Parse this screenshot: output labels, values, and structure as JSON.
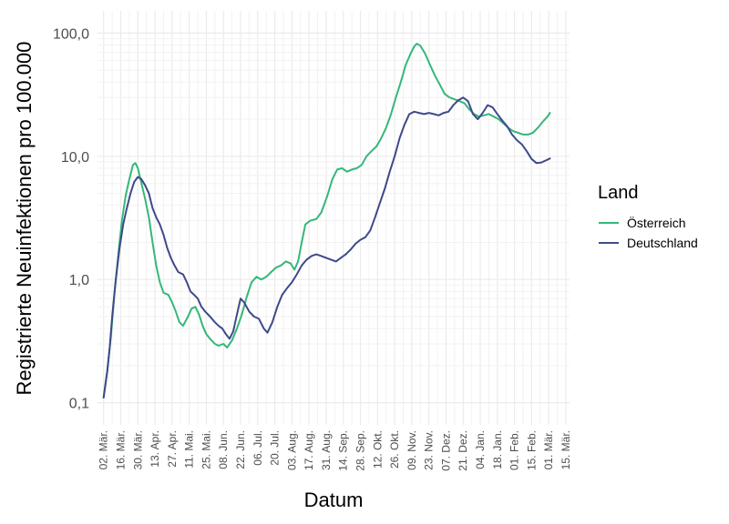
{
  "chart_data": {
    "type": "line",
    "xlabel": "Datum",
    "ylabel": "Registrierte Neuinfektionen pro 100.000",
    "yscale": "log10",
    "ylim": [
      0.1,
      100
    ],
    "xlim": [
      "2020-02-26",
      "2021-03-18"
    ],
    "grid": true,
    "legend": {
      "title": "Land",
      "placement": "right"
    },
    "y_ticks": [
      {
        "value": 0.1,
        "label": "0,1"
      },
      {
        "value": 1,
        "label": "1,0"
      },
      {
        "value": 10,
        "label": "10,0"
      },
      {
        "value": 100,
        "label": "100,0"
      }
    ],
    "x_ticks": [
      {
        "date": "2020-03-02",
        "label": "02. Mär."
      },
      {
        "date": "2020-03-16",
        "label": "16. Mär."
      },
      {
        "date": "2020-03-30",
        "label": "30. Mär."
      },
      {
        "date": "2020-04-13",
        "label": "13. Apr."
      },
      {
        "date": "2020-04-27",
        "label": "27. Apr."
      },
      {
        "date": "2020-05-11",
        "label": "11. Mai."
      },
      {
        "date": "2020-05-25",
        "label": "25. Mai."
      },
      {
        "date": "2020-06-08",
        "label": "08. Jun."
      },
      {
        "date": "2020-06-22",
        "label": "22. Jun."
      },
      {
        "date": "2020-07-06",
        "label": "06. Jul."
      },
      {
        "date": "2020-07-20",
        "label": "20. Jul."
      },
      {
        "date": "2020-08-03",
        "label": "03. Aug."
      },
      {
        "date": "2020-08-17",
        "label": "17. Aug."
      },
      {
        "date": "2020-08-31",
        "label": "31. Aug."
      },
      {
        "date": "2020-09-14",
        "label": "14. Sep."
      },
      {
        "date": "2020-09-28",
        "label": "28. Sep."
      },
      {
        "date": "2020-10-12",
        "label": "12. Okt."
      },
      {
        "date": "2020-10-26",
        "label": "26. Okt."
      },
      {
        "date": "2020-11-09",
        "label": "09. Nov."
      },
      {
        "date": "2020-11-23",
        "label": "23. Nov."
      },
      {
        "date": "2020-12-07",
        "label": "07. Dez."
      },
      {
        "date": "2020-12-21",
        "label": "21. Dez."
      },
      {
        "date": "2021-01-04",
        "label": "04. Jan."
      },
      {
        "date": "2021-01-18",
        "label": "18. Jan."
      },
      {
        "date": "2021-02-01",
        "label": "01. Feb."
      },
      {
        "date": "2021-02-15",
        "label": "15. Feb."
      },
      {
        "date": "2021-03-01",
        "label": "01. Mär."
      },
      {
        "date": "2021-03-15",
        "label": "15. Mär."
      }
    ],
    "series": [
      {
        "name": "Österreich",
        "color": "#35b779",
        "points": [
          [
            "2020-03-02",
            0.11
          ],
          [
            "2020-03-05",
            0.18
          ],
          [
            "2020-03-08",
            0.35
          ],
          [
            "2020-03-11",
            0.8
          ],
          [
            "2020-03-14",
            1.6
          ],
          [
            "2020-03-17",
            3.0
          ],
          [
            "2020-03-20",
            4.8
          ],
          [
            "2020-03-23",
            6.5
          ],
          [
            "2020-03-26",
            8.5
          ],
          [
            "2020-03-28",
            8.8
          ],
          [
            "2020-03-30",
            8.0
          ],
          [
            "2020-04-02",
            6.0
          ],
          [
            "2020-04-05",
            4.5
          ],
          [
            "2020-04-08",
            3.2
          ],
          [
            "2020-04-11",
            2.0
          ],
          [
            "2020-04-14",
            1.3
          ],
          [
            "2020-04-17",
            0.95
          ],
          [
            "2020-04-20",
            0.78
          ],
          [
            "2020-04-24",
            0.75
          ],
          [
            "2020-04-27",
            0.65
          ],
          [
            "2020-04-30",
            0.55
          ],
          [
            "2020-05-03",
            0.45
          ],
          [
            "2020-05-06",
            0.42
          ],
          [
            "2020-05-10",
            0.5
          ],
          [
            "2020-05-13",
            0.58
          ],
          [
            "2020-05-16",
            0.6
          ],
          [
            "2020-05-19",
            0.52
          ],
          [
            "2020-05-22",
            0.42
          ],
          [
            "2020-05-25",
            0.36
          ],
          [
            "2020-05-28",
            0.33
          ],
          [
            "2020-06-01",
            0.3
          ],
          [
            "2020-06-04",
            0.29
          ],
          [
            "2020-06-08",
            0.3
          ],
          [
            "2020-06-11",
            0.28
          ],
          [
            "2020-06-15",
            0.32
          ],
          [
            "2020-06-19",
            0.4
          ],
          [
            "2020-06-23",
            0.52
          ],
          [
            "2020-06-27",
            0.72
          ],
          [
            "2020-07-01",
            0.95
          ],
          [
            "2020-07-05",
            1.05
          ],
          [
            "2020-07-09",
            1.0
          ],
          [
            "2020-07-13",
            1.05
          ],
          [
            "2020-07-17",
            1.15
          ],
          [
            "2020-07-21",
            1.25
          ],
          [
            "2020-07-25",
            1.3
          ],
          [
            "2020-07-29",
            1.4
          ],
          [
            "2020-08-02",
            1.35
          ],
          [
            "2020-08-05",
            1.2
          ],
          [
            "2020-08-08",
            1.4
          ],
          [
            "2020-08-11",
            2.0
          ],
          [
            "2020-08-14",
            2.8
          ],
          [
            "2020-08-18",
            3.0
          ],
          [
            "2020-08-23",
            3.1
          ],
          [
            "2020-08-27",
            3.5
          ],
          [
            "2020-09-01",
            4.8
          ],
          [
            "2020-09-05",
            6.5
          ],
          [
            "2020-09-09",
            7.8
          ],
          [
            "2020-09-13",
            8.0
          ],
          [
            "2020-09-17",
            7.5
          ],
          [
            "2020-09-21",
            7.8
          ],
          [
            "2020-09-25",
            8.0
          ],
          [
            "2020-09-29",
            8.5
          ],
          [
            "2020-10-03",
            10.0
          ],
          [
            "2020-10-07",
            11.0
          ],
          [
            "2020-10-11",
            12.0
          ],
          [
            "2020-10-15",
            14.0
          ],
          [
            "2020-10-19",
            17.0
          ],
          [
            "2020-10-23",
            22.0
          ],
          [
            "2020-10-27",
            30.0
          ],
          [
            "2020-10-31",
            40.0
          ],
          [
            "2020-11-04",
            55.0
          ],
          [
            "2020-11-08",
            68.0
          ],
          [
            "2020-11-11",
            78.0
          ],
          [
            "2020-11-13",
            82.0
          ],
          [
            "2020-11-16",
            79.0
          ],
          [
            "2020-11-20",
            68.0
          ],
          [
            "2020-11-24",
            55.0
          ],
          [
            "2020-11-28",
            45.0
          ],
          [
            "2020-12-02",
            38.0
          ],
          [
            "2020-12-06",
            32.0
          ],
          [
            "2020-12-10",
            30.0
          ],
          [
            "2020-12-14",
            29.0
          ],
          [
            "2020-12-18",
            28.0
          ],
          [
            "2020-12-22",
            27.0
          ],
          [
            "2020-12-26",
            24.0
          ],
          [
            "2020-12-30",
            22.0
          ],
          [
            "2021-01-03",
            21.0
          ],
          [
            "2021-01-07",
            21.5
          ],
          [
            "2021-01-11",
            22.0
          ],
          [
            "2021-01-15",
            21.0
          ],
          [
            "2021-01-19",
            20.0
          ],
          [
            "2021-01-23",
            18.5
          ],
          [
            "2021-01-27",
            17.0
          ],
          [
            "2021-01-31",
            16.0
          ],
          [
            "2021-02-04",
            15.5
          ],
          [
            "2021-02-08",
            15.0
          ],
          [
            "2021-02-12",
            15.0
          ],
          [
            "2021-02-16",
            15.5
          ],
          [
            "2021-02-20",
            17.0
          ],
          [
            "2021-02-24",
            19.0
          ],
          [
            "2021-02-28",
            21.0
          ],
          [
            "2021-03-02",
            22.5
          ]
        ]
      },
      {
        "name": "Deutschland",
        "color": "#3e4a89",
        "points": [
          [
            "2020-03-02",
            0.11
          ],
          [
            "2020-03-05",
            0.18
          ],
          [
            "2020-03-07",
            0.28
          ],
          [
            "2020-03-09",
            0.5
          ],
          [
            "2020-03-12",
            1.0
          ],
          [
            "2020-03-15",
            1.8
          ],
          [
            "2020-03-18",
            2.8
          ],
          [
            "2020-03-21",
            3.8
          ],
          [
            "2020-03-24",
            5.0
          ],
          [
            "2020-03-27",
            6.2
          ],
          [
            "2020-03-30",
            6.8
          ],
          [
            "2020-04-02",
            6.5
          ],
          [
            "2020-04-05",
            5.8
          ],
          [
            "2020-04-08",
            5.0
          ],
          [
            "2020-04-11",
            3.8
          ],
          [
            "2020-04-14",
            3.2
          ],
          [
            "2020-04-17",
            2.8
          ],
          [
            "2020-04-20",
            2.3
          ],
          [
            "2020-04-23",
            1.8
          ],
          [
            "2020-04-26",
            1.5
          ],
          [
            "2020-04-29",
            1.3
          ],
          [
            "2020-05-02",
            1.15
          ],
          [
            "2020-05-06",
            1.1
          ],
          [
            "2020-05-09",
            0.95
          ],
          [
            "2020-05-12",
            0.8
          ],
          [
            "2020-05-15",
            0.75
          ],
          [
            "2020-05-18",
            0.7
          ],
          [
            "2020-05-21",
            0.6
          ],
          [
            "2020-05-24",
            0.55
          ],
          [
            "2020-05-28",
            0.5
          ],
          [
            "2020-06-01",
            0.45
          ],
          [
            "2020-06-04",
            0.42
          ],
          [
            "2020-06-07",
            0.4
          ],
          [
            "2020-06-10",
            0.36
          ],
          [
            "2020-06-13",
            0.33
          ],
          [
            "2020-06-16",
            0.38
          ],
          [
            "2020-06-19",
            0.52
          ],
          [
            "2020-06-22",
            0.7
          ],
          [
            "2020-06-25",
            0.65
          ],
          [
            "2020-06-29",
            0.55
          ],
          [
            "2020-07-03",
            0.5
          ],
          [
            "2020-07-07",
            0.48
          ],
          [
            "2020-07-11",
            0.4
          ],
          [
            "2020-07-14",
            0.37
          ],
          [
            "2020-07-18",
            0.45
          ],
          [
            "2020-07-22",
            0.6
          ],
          [
            "2020-07-26",
            0.75
          ],
          [
            "2020-07-30",
            0.85
          ],
          [
            "2020-08-03",
            0.95
          ],
          [
            "2020-08-07",
            1.1
          ],
          [
            "2020-08-11",
            1.3
          ],
          [
            "2020-08-15",
            1.45
          ],
          [
            "2020-08-19",
            1.55
          ],
          [
            "2020-08-23",
            1.6
          ],
          [
            "2020-08-27",
            1.55
          ],
          [
            "2020-08-31",
            1.5
          ],
          [
            "2020-09-04",
            1.45
          ],
          [
            "2020-09-08",
            1.4
          ],
          [
            "2020-09-12",
            1.5
          ],
          [
            "2020-09-16",
            1.6
          ],
          [
            "2020-09-20",
            1.75
          ],
          [
            "2020-09-24",
            1.95
          ],
          [
            "2020-09-28",
            2.1
          ],
          [
            "2020-10-02",
            2.2
          ],
          [
            "2020-10-06",
            2.5
          ],
          [
            "2020-10-10",
            3.2
          ],
          [
            "2020-10-14",
            4.2
          ],
          [
            "2020-10-18",
            5.5
          ],
          [
            "2020-10-22",
            7.5
          ],
          [
            "2020-10-26",
            10.0
          ],
          [
            "2020-10-30",
            14.0
          ],
          [
            "2020-11-03",
            18.0
          ],
          [
            "2020-11-07",
            22.0
          ],
          [
            "2020-11-11",
            23.0
          ],
          [
            "2020-11-15",
            22.5
          ],
          [
            "2020-11-19",
            22.0
          ],
          [
            "2020-11-23",
            22.5
          ],
          [
            "2020-11-27",
            22.0
          ],
          [
            "2020-12-01",
            21.5
          ],
          [
            "2020-12-05",
            22.5
          ],
          [
            "2020-12-09",
            23.0
          ],
          [
            "2020-12-13",
            26.0
          ],
          [
            "2020-12-17",
            28.5
          ],
          [
            "2020-12-21",
            30.0
          ],
          [
            "2020-12-25",
            28.0
          ],
          [
            "2020-12-29",
            22.0
          ],
          [
            "2021-01-02",
            20.0
          ],
          [
            "2021-01-06",
            22.5
          ],
          [
            "2021-01-10",
            26.0
          ],
          [
            "2021-01-14",
            25.0
          ],
          [
            "2021-01-18",
            22.0
          ],
          [
            "2021-01-22",
            19.5
          ],
          [
            "2021-01-26",
            17.5
          ],
          [
            "2021-01-30",
            15.0
          ],
          [
            "2021-02-03",
            13.5
          ],
          [
            "2021-02-07",
            12.5
          ],
          [
            "2021-02-11",
            11.0
          ],
          [
            "2021-02-15",
            9.5
          ],
          [
            "2021-02-19",
            8.8
          ],
          [
            "2021-02-23",
            8.9
          ],
          [
            "2021-02-27",
            9.3
          ],
          [
            "2021-03-02",
            9.6
          ]
        ]
      }
    ]
  }
}
